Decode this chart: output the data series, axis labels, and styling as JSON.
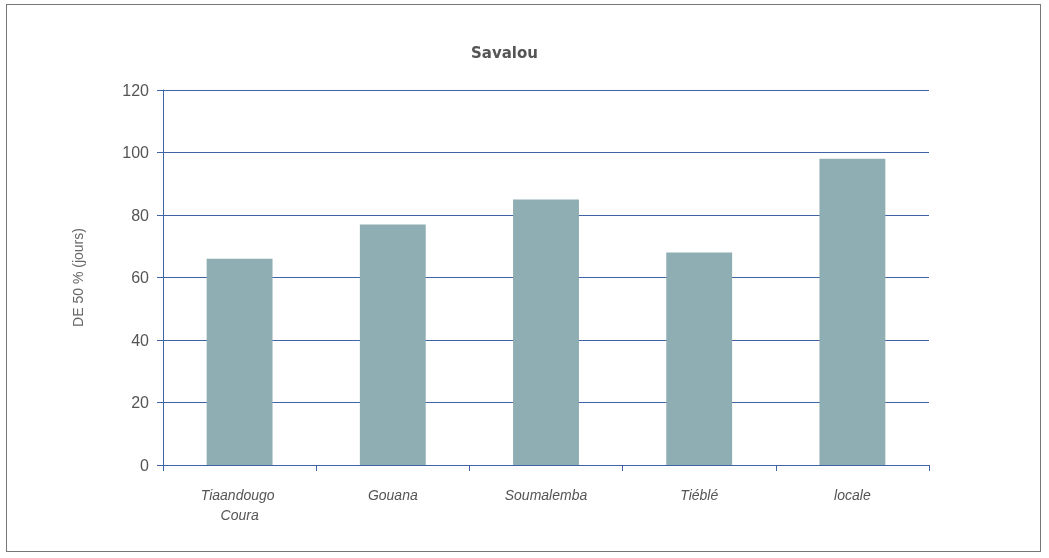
{
  "chart_data": {
    "type": "bar",
    "title": "Savalou",
    "ylabel": "DE 50 % (jours)",
    "categories": [
      "Tiaandougo Coura",
      "Gouana",
      "Soumalemba",
      "Tiéblé",
      "locale"
    ],
    "values": [
      66,
      77,
      85,
      68,
      98
    ],
    "color": "#8eaeb3",
    "ylim": [
      0,
      120
    ],
    "yticks": [
      0,
      20,
      40,
      60,
      80,
      100,
      120
    ],
    "grid": "y"
  }
}
